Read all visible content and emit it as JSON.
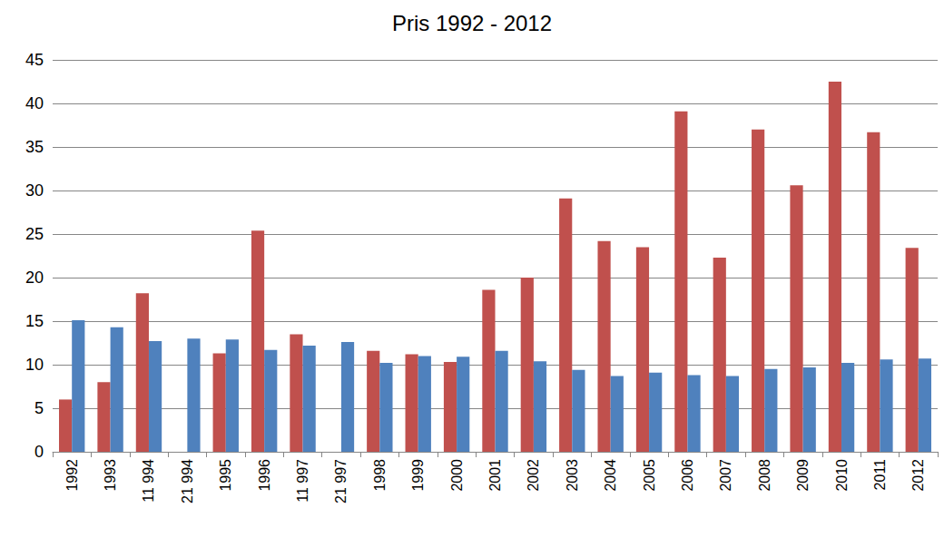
{
  "chart_data": {
    "type": "bar",
    "title": "Pris 1992 - 2012",
    "categories": [
      "1992",
      "1993",
      "11 994",
      "21 994",
      "1995",
      "1996",
      "11 997",
      "21 997",
      "1998",
      "1999",
      "2000",
      "2001",
      "2002",
      "2003",
      "2004",
      "2005",
      "2006",
      "2007",
      "2008",
      "2009",
      "2010",
      "2011",
      "2012"
    ],
    "series": [
      {
        "color": "#c0504d",
        "values": [
          6,
          8,
          18.2,
          null,
          11.3,
          25.4,
          13.5,
          null,
          11.6,
          11.2,
          10.3,
          18.6,
          20,
          29.1,
          24.2,
          23.5,
          39.1,
          22.3,
          37,
          30.6,
          42.5,
          36.7,
          23.4
        ]
      },
      {
        "color": "#4f81bd",
        "values": [
          15.1,
          14.3,
          12.7,
          13,
          12.9,
          11.7,
          12.2,
          12.6,
          10.2,
          11,
          10.9,
          11.6,
          10.4,
          9.4,
          8.7,
          9.1,
          8.8,
          8.7,
          9.5,
          9.7,
          10.2,
          10.6,
          10.7
        ]
      }
    ],
    "ylim": [
      0,
      45
    ],
    "yticks": [
      0,
      5,
      10,
      15,
      20,
      25,
      30,
      35,
      40,
      45
    ],
    "grid": true
  }
}
